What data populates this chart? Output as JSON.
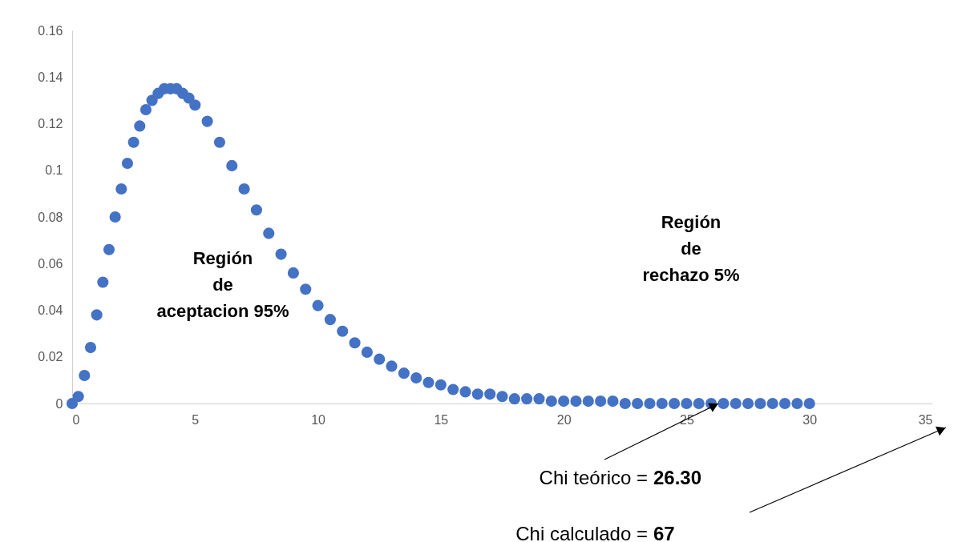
{
  "chart_data": {
    "type": "scatter",
    "marker": "circle",
    "grid": false,
    "x": [
      0,
      0.25,
      0.5,
      0.75,
      1,
      1.25,
      1.5,
      1.75,
      2,
      2.25,
      2.5,
      2.75,
      3,
      3.25,
      3.5,
      3.75,
      4,
      4.25,
      4.5,
      4.75,
      5,
      5.5,
      6,
      6.5,
      7,
      7.5,
      8,
      8.5,
      9,
      9.5,
      10,
      10.5,
      11,
      11.5,
      12,
      12.5,
      13,
      13.5,
      14,
      14.5,
      15,
      15.5,
      16,
      16.5,
      17,
      17.5,
      18,
      18.5,
      19,
      19.5,
      20,
      20.5,
      21,
      21.5,
      22,
      22.5,
      23,
      23.5,
      24,
      24.5,
      25,
      25.5,
      26,
      26.5,
      27,
      27.5,
      28,
      28.5,
      29,
      29.5,
      30
    ],
    "series": [
      {
        "color": "#4472c4",
        "values": [
          0,
          0.003,
          0.012,
          0.024,
          0.038,
          0.052,
          0.066,
          0.08,
          0.092,
          0.103,
          0.112,
          0.119,
          0.126,
          0.13,
          0.133,
          0.135,
          0.135,
          0.135,
          0.133,
          0.131,
          0.128,
          0.121,
          0.112,
          0.102,
          0.092,
          0.083,
          0.073,
          0.064,
          0.056,
          0.049,
          0.042,
          0.036,
          0.031,
          0.026,
          0.022,
          0.019,
          0.016,
          0.013,
          0.011,
          0.009,
          0.008,
          0.006,
          0.005,
          0.004,
          0.004,
          0.003,
          0.002,
          0.002,
          0.002,
          0.001,
          0.001,
          0.001,
          0.001,
          0.001,
          0.001,
          0,
          0,
          0,
          0,
          0,
          0,
          0,
          0,
          0,
          0,
          0,
          0,
          0,
          0,
          0,
          0
        ]
      }
    ],
    "xlim": [
      0,
      35
    ],
    "xticks": [
      0,
      5,
      10,
      15,
      20,
      25,
      30,
      35
    ],
    "ylim": [
      0,
      0.16
    ],
    "yticks": [
      0,
      0.02,
      0.04,
      0.06,
      0.08,
      0.1,
      0.12,
      0.14,
      0.16
    ],
    "annotations": [
      "Región\nde\naceptacion 95%",
      "Región\nde\nrechazo 5%",
      {
        "text": "Chi teórico = 26.30",
        "x": 26.3,
        "y": 0
      },
      "Chi calculado = 67"
    ]
  }
}
